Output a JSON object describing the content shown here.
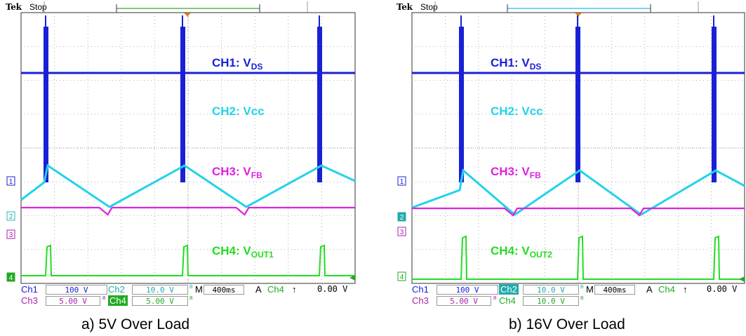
{
  "panels": [
    {
      "brand": "Tek",
      "state": "Stop",
      "labels": {
        "ch1": {
          "main": "CH1: V",
          "sub": "DS"
        },
        "ch2": {
          "main": "CH2: Vcc",
          "sub": ""
        },
        "ch3": {
          "main": "CH3: V",
          "sub": "FB"
        },
        "ch4": {
          "main": "CH4: V",
          "sub": "OUT1"
        }
      },
      "markers": [
        "1",
        "2",
        "3",
        "4"
      ],
      "readouts": {
        "ch1": {
          "name": "Ch1",
          "value": "100 V"
        },
        "ch2": {
          "name": "Ch2",
          "value": "10.0 V"
        },
        "ch3": {
          "name": "Ch3",
          "value": "5.00 V"
        },
        "ch4": {
          "name": "Ch4",
          "value": "5.00 V"
        },
        "timebase": {
          "prefix": "M",
          "value": "400ms"
        },
        "trigger": {
          "mode": "A",
          "source": "Ch4",
          "slope": "↑",
          "level": "0.00 V"
        }
      },
      "caption": "a) 5V Over Load"
    },
    {
      "brand": "Tek",
      "state": "Stop",
      "labels": {
        "ch1": {
          "main": "CH1: V",
          "sub": "DS"
        },
        "ch2": {
          "main": "CH2: Vcc",
          "sub": ""
        },
        "ch3": {
          "main": "CH3: V",
          "sub": "FB"
        },
        "ch4": {
          "main": "CH4: V",
          "sub": "OUT2"
        }
      },
      "markers": [
        "1",
        "2",
        "3",
        "4"
      ],
      "readouts": {
        "ch1": {
          "name": "Ch1",
          "value": "100 V"
        },
        "ch2": {
          "name": "Ch2",
          "value": "10.0 V"
        },
        "ch3": {
          "name": "Ch3",
          "value": "5.00 V"
        },
        "ch4": {
          "name": "Ch4",
          "value": "10.0 V"
        },
        "timebase": {
          "prefix": "M",
          "value": "400ms"
        },
        "trigger": {
          "mode": "A",
          "source": "Ch4",
          "slope": "↑",
          "level": "0.00 V"
        }
      },
      "caption": "b) 16V Over Load"
    }
  ],
  "colors": {
    "ch1": "#1a20d6",
    "ch2": "#22d3e8",
    "ch3": "#dd22dd",
    "ch4": "#22dd22",
    "grid": "#7f7f7f",
    "trigger_marker": "#f08000"
  }
}
